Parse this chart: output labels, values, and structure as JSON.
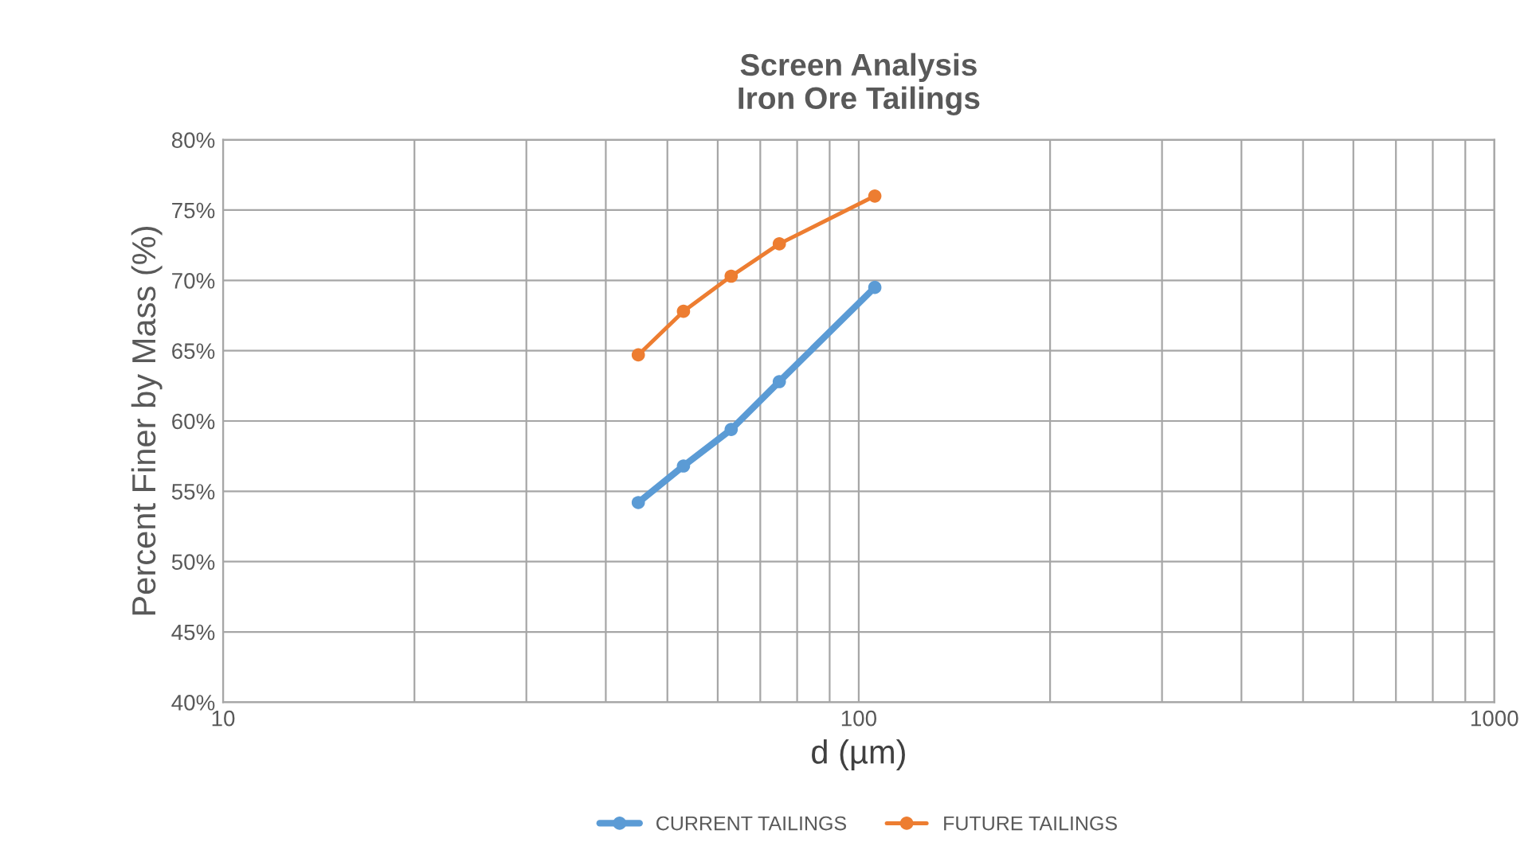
{
  "chart_data": {
    "type": "line",
    "title": "Screen Analysis\nIron Ore Tailings",
    "xlabel": "d (µm)",
    "ylabel": "Percent Finer by Mass (%)",
    "series": [
      {
        "name": "CURRENT TAILINGS",
        "color": "#5b9bd5",
        "x": [
          45,
          53,
          63,
          75,
          106
        ],
        "values": [
          54.2,
          56.8,
          59.4,
          62.8,
          69.5
        ]
      },
      {
        "name": "FUTURE TAILINGS",
        "color": "#ed7d31",
        "x": [
          45,
          53,
          63,
          75,
          106
        ],
        "values": [
          64.7,
          67.8,
          70.3,
          72.6,
          76.0
        ]
      }
    ],
    "log": "x",
    "xlim": [
      10,
      1000
    ],
    "xticks": [
      10,
      100,
      1000
    ],
    "ylim": [
      40,
      80
    ],
    "yticks": [
      {
        "value": 40,
        "label": "40%"
      },
      {
        "value": 45,
        "label": "45%"
      },
      {
        "value": 50,
        "label": "50%"
      },
      {
        "value": 55,
        "label": "55%"
      },
      {
        "value": 60,
        "label": "60%"
      },
      {
        "value": 65,
        "label": "65%"
      },
      {
        "value": 70,
        "label": "70%"
      },
      {
        "value": 75,
        "label": "75%"
      },
      {
        "value": 80,
        "label": "80%"
      }
    ],
    "grid": true,
    "legend": "bottom",
    "marker": "circle",
    "line_style": "solid"
  }
}
